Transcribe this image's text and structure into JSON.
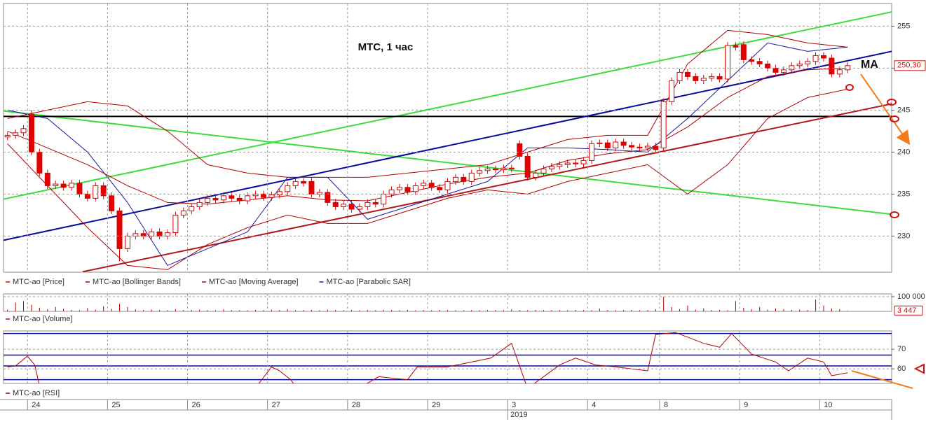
{
  "chart_data": [
    {
      "type": "candlestick",
      "title": "МТС, 1 час",
      "annotation": "MA",
      "year_label": "2019",
      "categories": [
        null,
        null,
        null,
        "24",
        null,
        null,
        null,
        null,
        null,
        null,
        null,
        null,
        null,
        "25",
        null,
        null,
        null,
        null,
        null,
        null,
        null,
        null,
        null,
        "26",
        null,
        null,
        null,
        null,
        null,
        null,
        null,
        null,
        null,
        "27",
        null,
        null,
        null,
        null,
        null,
        null,
        null,
        null,
        null,
        "28",
        null,
        null,
        null,
        null,
        null,
        null,
        null,
        null,
        null,
        "29",
        null,
        null,
        null,
        null,
        null,
        null,
        null,
        null,
        null,
        "3",
        null,
        null,
        null,
        null,
        null,
        null,
        null,
        null,
        null,
        "4",
        null,
        null,
        null,
        null,
        null,
        null,
        null,
        null,
        "8",
        null,
        null,
        null,
        null,
        null,
        null,
        null,
        null,
        null,
        "9",
        null,
        null,
        null,
        null,
        null,
        null,
        null,
        null,
        null,
        "10",
        null,
        null,
        null
      ],
      "series": [
        {
          "name": "MTC-ao [Price]",
          "color": "#e00000",
          "open": [
            241.8,
            242.0,
            242.3,
            244.5,
            240.0,
            237.5,
            236.0,
            236.2,
            235.8,
            236.3,
            235.0,
            234.5,
            236.0,
            234.8,
            233.0,
            228.5,
            230.0,
            230.3,
            230.0,
            230.5,
            230.0,
            230.4,
            232.5,
            233.0,
            233.5,
            234.0,
            234.5,
            234.3,
            234.8,
            234.5,
            234.2,
            234.8,
            235.0,
            234.6,
            234.9,
            235.3,
            236.0,
            236.5,
            236.5,
            235.0,
            235.2,
            234.0,
            233.5,
            233.8,
            233.2,
            233.5,
            234.0,
            233.8,
            235.0,
            235.5,
            235.8,
            235.3,
            236.0,
            236.3,
            235.8,
            235.5,
            236.5,
            237.0,
            236.5,
            237.5,
            237.8,
            238.0,
            237.9,
            238.1,
            241.0,
            239.5,
            237.0,
            237.5,
            238.0,
            238.3,
            238.5,
            238.7,
            238.6,
            239.0,
            241.0,
            241.1,
            240.5,
            241.2,
            240.8,
            240.6,
            240.5,
            240.7,
            240.5,
            246.0,
            248.5,
            249.5,
            249.0,
            248.5,
            248.8,
            249.0,
            248.7,
            252.7,
            252.8,
            251.0,
            250.8,
            250.5,
            250.0,
            249.5,
            249.8,
            250.3,
            250.5,
            250.8,
            251.5,
            251.2,
            249.3,
            249.8
          ],
          "high": [
            242.4,
            242.7,
            243.2,
            245.0,
            240.4,
            237.9,
            236.6,
            236.6,
            236.7,
            236.7,
            235.4,
            236.4,
            236.4,
            235.2,
            233.4,
            230.4,
            230.7,
            230.7,
            230.9,
            230.9,
            230.8,
            232.9,
            233.4,
            233.9,
            234.4,
            234.9,
            234.9,
            235.2,
            235.2,
            234.9,
            235.2,
            235.4,
            235.4,
            235.3,
            235.7,
            236.4,
            236.9,
            236.9,
            236.9,
            235.6,
            235.6,
            234.4,
            234.2,
            234.2,
            233.9,
            234.4,
            234.4,
            235.4,
            235.9,
            236.2,
            236.2,
            236.4,
            236.7,
            236.7,
            236.2,
            236.9,
            237.4,
            237.4,
            237.9,
            238.2,
            238.4,
            238.4,
            238.5,
            238.5,
            241.4,
            239.9,
            237.9,
            238.4,
            238.7,
            238.9,
            239.1,
            239.1,
            239.4,
            241.4,
            241.5,
            241.5,
            241.6,
            241.6,
            241.2,
            241.0,
            241.1,
            241.1,
            246.4,
            248.9,
            249.9,
            249.9,
            249.4,
            249.2,
            249.4,
            249.4,
            253.1,
            253.1,
            253.2,
            251.4,
            251.2,
            250.9,
            250.4,
            250.2,
            250.7,
            250.9,
            251.2,
            251.9,
            251.9,
            251.6,
            250.2,
            250.7
          ],
          "low": [
            241.4,
            241.6,
            241.9,
            239.6,
            237.1,
            235.6,
            235.6,
            235.4,
            235.4,
            234.6,
            234.1,
            234.1,
            234.4,
            232.6,
            227.0,
            228.1,
            229.6,
            229.6,
            229.6,
            229.6,
            229.6,
            230.0,
            232.1,
            232.6,
            233.1,
            233.6,
            233.9,
            233.9,
            234.1,
            233.8,
            233.8,
            234.4,
            234.2,
            234.2,
            234.5,
            234.9,
            235.6,
            235.9,
            234.6,
            234.6,
            233.6,
            233.1,
            233.1,
            232.8,
            232.8,
            233.1,
            233.4,
            233.4,
            234.6,
            235.1,
            234.9,
            234.9,
            235.6,
            235.4,
            235.1,
            235.1,
            236.1,
            236.1,
            236.1,
            237.1,
            237.4,
            237.5,
            237.5,
            237.6,
            239.1,
            236.6,
            236.6,
            237.1,
            237.6,
            237.9,
            238.1,
            238.2,
            238.2,
            238.6,
            240.6,
            240.1,
            240.1,
            240.4,
            240.2,
            240.1,
            240.1,
            239.9,
            240.1,
            245.6,
            248.1,
            248.6,
            248.1,
            248.1,
            248.4,
            248.3,
            248.3,
            252.1,
            250.6,
            250.4,
            250.1,
            249.6,
            249.1,
            249.1,
            249.4,
            249.9,
            250.1,
            250.4,
            250.8,
            248.9,
            248.9,
            249.4
          ],
          "close": [
            242.0,
            242.3,
            242.8,
            240.0,
            237.5,
            236.0,
            236.2,
            235.8,
            236.3,
            235.0,
            234.5,
            236.0,
            234.8,
            233.0,
            228.5,
            230.0,
            230.3,
            230.0,
            230.5,
            230.0,
            230.4,
            232.5,
            233.0,
            233.5,
            234.0,
            234.5,
            234.3,
            234.8,
            234.5,
            234.2,
            234.8,
            235.0,
            234.6,
            234.9,
            235.3,
            236.0,
            236.5,
            236.3,
            235.0,
            235.2,
            234.0,
            233.5,
            233.8,
            233.2,
            233.5,
            234.0,
            233.8,
            235.0,
            235.5,
            235.8,
            235.3,
            236.0,
            236.3,
            235.8,
            235.5,
            236.5,
            237.0,
            236.5,
            237.5,
            237.8,
            238.0,
            237.9,
            238.1,
            238.0,
            239.5,
            237.0,
            237.5,
            238.0,
            238.3,
            238.5,
            238.7,
            238.6,
            239.0,
            241.0,
            241.1,
            240.5,
            241.2,
            240.8,
            240.6,
            240.5,
            240.7,
            240.3,
            246.0,
            248.5,
            249.5,
            249.0,
            248.5,
            248.8,
            249.0,
            248.7,
            252.7,
            252.5,
            251.0,
            250.8,
            250.5,
            250.0,
            249.5,
            249.8,
            250.3,
            250.5,
            250.8,
            251.5,
            251.2,
            249.3,
            249.8,
            250.3
          ]
        }
      ],
      "indicators": [
        {
          "name": "MTC-ao [Bollinger Bands]",
          "color": "#b00000",
          "x": [
            0,
            5,
            10,
            15,
            20,
            25,
            30,
            35,
            40,
            45,
            50,
            55,
            60,
            65,
            70,
            75,
            80,
            85,
            90,
            95,
            100,
            105
          ],
          "upper": [
            244.0,
            245.0,
            246.0,
            245.5,
            242.5,
            238.5,
            237.5,
            237.0,
            237.0,
            237.0,
            237.5,
            238.0,
            238.5,
            240.0,
            241.5,
            242.0,
            242.0,
            250.5,
            254.5,
            254.0,
            253.0,
            252.5
          ],
          "lower": [
            241.0,
            236.0,
            231.0,
            226.5,
            226.0,
            229.0,
            231.0,
            232.5,
            231.5,
            231.5,
            233.0,
            234.5,
            235.5,
            235.0,
            236.5,
            237.5,
            238.5,
            235.0,
            238.5,
            244.0,
            246.5,
            247.5
          ]
        },
        {
          "name": "MTC-ao [Moving Average]",
          "color": "#b00000",
          "x": [
            0,
            5,
            10,
            15,
            20,
            25,
            30,
            35,
            40,
            45,
            50,
            55,
            60,
            65,
            70,
            75,
            80,
            85,
            90,
            95,
            100,
            105
          ],
          "values": [
            242.5,
            240.5,
            238.5,
            236.0,
            234.0,
            233.8,
            234.3,
            234.8,
            234.3,
            234.2,
            235.2,
            236.2,
            237.0,
            237.5,
            239.0,
            239.8,
            240.3,
            243.0,
            246.5,
            249.0,
            249.8,
            250.0
          ]
        },
        {
          "name": "MTC-ao [Parabolic SAR]",
          "color": "#1a1a9a",
          "x": [
            0,
            5,
            10,
            15,
            20,
            25,
            30,
            35,
            40,
            45,
            50,
            55,
            60,
            65,
            70,
            75,
            80,
            85,
            90,
            95,
            100,
            105
          ],
          "values": [
            245.0,
            244.0,
            240.0,
            234.0,
            226.5,
            228.5,
            230.5,
            237.0,
            237.0,
            232.0,
            233.5,
            235.0,
            236.5,
            240.5,
            240.5,
            240.3,
            240.0,
            244.0,
            248.5,
            253.0,
            252.0,
            252.5
          ]
        }
      ],
      "trendlines": [
        {
          "color": "#3ddc3d",
          "x": [
            -0.5,
            110.5
          ],
          "values": [
            234.4,
            256.7
          ]
        },
        {
          "color": "#3ddc3d",
          "x": [
            -0.5,
            110.5
          ],
          "values": [
            244.9,
            232.6
          ]
        },
        {
          "color": "#000000",
          "x": [
            -0.5,
            110.5
          ],
          "values": [
            244.25,
            244.25
          ]
        },
        {
          "color": "#0a0a9a",
          "x": [
            -0.5,
            110.5
          ],
          "values": [
            229.5,
            252.0
          ]
        },
        {
          "color": "#b01818",
          "x": [
            9.4,
            110.5
          ],
          "values": [
            225.75,
            245.75
          ]
        }
      ],
      "last_price": {
        "value": 250.3,
        "label": "250,30"
      },
      "xlim": [
        -0.5,
        110.5
      ],
      "ylim": [
        225.7,
        257.7
      ],
      "yticks": [
        230,
        235,
        240,
        245,
        250,
        255
      ],
      "grid": true
    },
    {
      "type": "bar",
      "series": [
        {
          "name": "MTC-ao [Volume]",
          "color": "#c00000",
          "values": [
            12000,
            60000,
            70000,
            45000,
            25000,
            15000,
            30000,
            18000,
            10000,
            8000,
            22000,
            12000,
            35000,
            18000,
            50000,
            30000,
            15000,
            10000,
            12000,
            9000,
            8000,
            15000,
            10000,
            9000,
            12000,
            8000,
            7000,
            15000,
            9000,
            8000,
            7000,
            10000,
            8000,
            12000,
            9000,
            15000,
            8000,
            9000,
            10000,
            7000,
            12000,
            9000,
            8000,
            10000,
            7000,
            9000,
            8000,
            11000,
            9000,
            8000,
            10000,
            7000,
            9000,
            8000,
            10000,
            9000,
            8000,
            7000,
            9000,
            8000,
            10000,
            9000,
            8000,
            15000,
            9000,
            8000,
            10000,
            9000,
            8000,
            9000,
            8000,
            10000,
            9000,
            8000,
            20000,
            9000,
            8000,
            9000,
            10000,
            8000,
            9000,
            15000,
            98000,
            30000,
            15000,
            40000,
            12000,
            20000,
            9000,
            10000,
            8000,
            70000,
            25000,
            15000,
            30000,
            12000,
            20000,
            15000,
            10000,
            12000,
            9000,
            80000,
            40000,
            20000,
            15000,
            3447
          ]
        }
      ],
      "last_value": {
        "value": 3447,
        "label": "3 447"
      },
      "ylim": [
        0,
        119000
      ],
      "yticks": [
        {
          "value": 100000,
          "label": "100 000"
        }
      ],
      "grid": true
    },
    {
      "type": "line",
      "series": [
        {
          "name": "MTC-ao [RSI]",
          "color": "#b00000",
          "x": [
            0,
            1,
            2.5,
            3.4,
            4.2,
            30,
            33,
            34,
            35.4,
            36.2,
            43,
            46.4,
            50,
            51.2,
            55,
            60.4,
            63,
            65,
            69,
            71,
            73.5,
            76,
            80,
            81,
            83.5,
            87,
            89,
            90.5,
            93,
            96,
            97.6,
            100,
            102,
            103,
            105
          ],
          "values": [
            61,
            61.5,
            66.5,
            62,
            48,
            45,
            61,
            59,
            54.5,
            50,
            48,
            56,
            54.5,
            61,
            61,
            65.5,
            73,
            50,
            62,
            65.5,
            62,
            61,
            59,
            77.5,
            78.5,
            73,
            71,
            78,
            67.5,
            63.5,
            59,
            65.5,
            63.5,
            56.5,
            58
          ]
        }
      ],
      "levels": [
        78,
        67,
        61.5,
        54.5
      ],
      "level_color": "#0a0a9a",
      "xlim": [
        -0.5,
        110.5
      ],
      "ylim": [
        52.6,
        79.3
      ],
      "yticks": [
        60,
        70
      ],
      "grid": true
    }
  ]
}
